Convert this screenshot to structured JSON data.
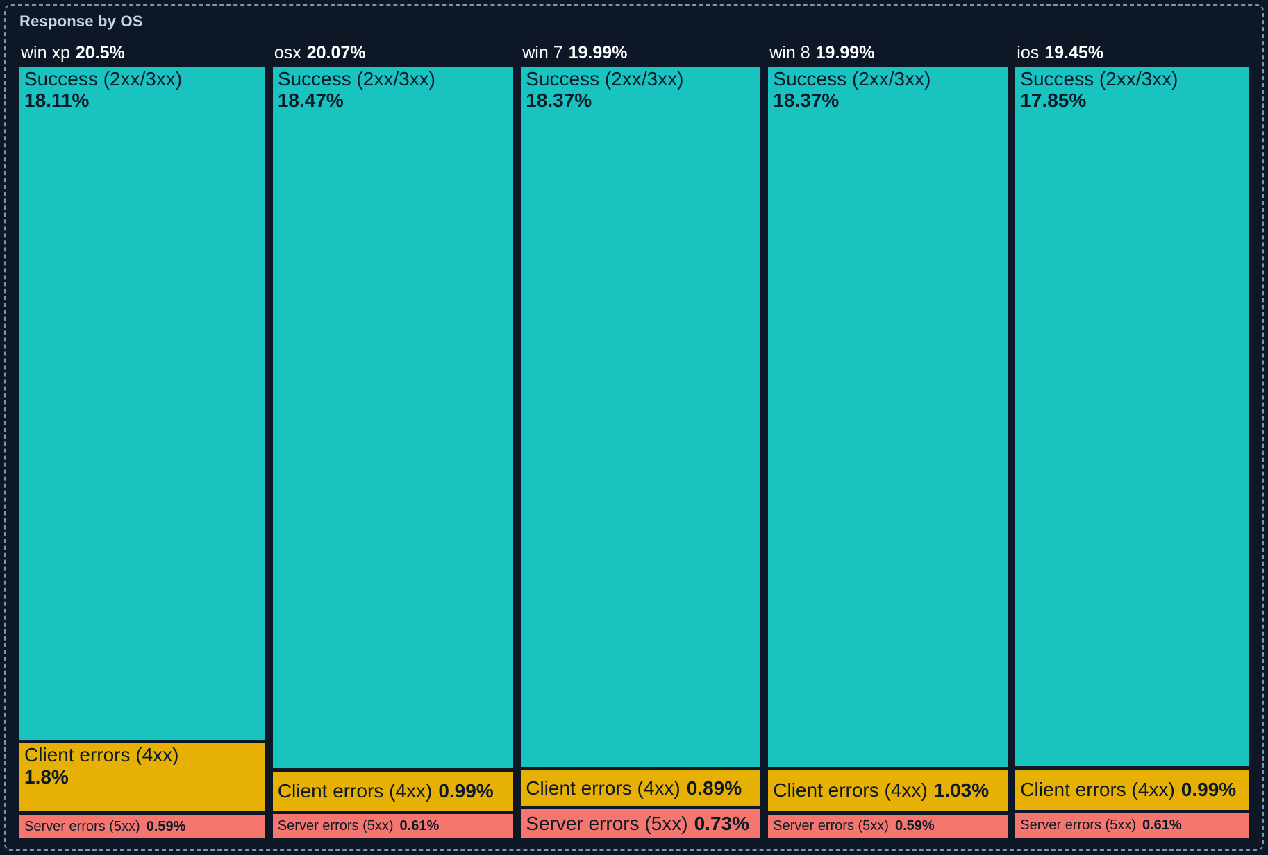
{
  "panel": {
    "title": "Response by OS"
  },
  "colors": {
    "background": "#0d1726",
    "dashed_border": "#8194ab",
    "title_text": "#c9d4e2",
    "header_text": "#ffffff",
    "tile_text": "#0c1a28",
    "success": "#18c3c0",
    "client": "#e7b004",
    "server": "#f4766f"
  },
  "chart_data": {
    "type": "treemap",
    "title": "Response by OS",
    "orientation": "columns proportional to OS share, stacked segments proportional to response share",
    "segment_labels": [
      "Success (2xx/3xx)",
      "Client errors (4xx)",
      "Server errors (5xx)"
    ],
    "groups": [
      {
        "label": "win xp",
        "total_pct": "20.5%",
        "value": 20.5,
        "segments": [
          {
            "kind": "success",
            "label": "Success (2xx/3xx)",
            "pct": "18.11%",
            "value": 18.11
          },
          {
            "kind": "client",
            "label": "Client errors (4xx)",
            "pct": "1.8%",
            "value": 1.8
          },
          {
            "kind": "server",
            "label": "Server errors (5xx)",
            "pct": "0.59%",
            "value": 0.59
          }
        ]
      },
      {
        "label": "osx",
        "total_pct": "20.07%",
        "value": 20.07,
        "segments": [
          {
            "kind": "success",
            "label": "Success (2xx/3xx)",
            "pct": "18.47%",
            "value": 18.47
          },
          {
            "kind": "client",
            "label": "Client errors (4xx)",
            "pct": "0.99%",
            "value": 0.99
          },
          {
            "kind": "server",
            "label": "Server errors (5xx)",
            "pct": "0.61%",
            "value": 0.61
          }
        ]
      },
      {
        "label": "win 7",
        "total_pct": "19.99%",
        "value": 19.99,
        "segments": [
          {
            "kind": "success",
            "label": "Success (2xx/3xx)",
            "pct": "18.37%",
            "value": 18.37
          },
          {
            "kind": "client",
            "label": "Client errors (4xx)",
            "pct": "0.89%",
            "value": 0.89
          },
          {
            "kind": "server",
            "label": "Server errors (5xx)",
            "pct": "0.73%",
            "value": 0.73
          }
        ]
      },
      {
        "label": "win 8",
        "total_pct": "19.99%",
        "value": 19.99,
        "segments": [
          {
            "kind": "success",
            "label": "Success (2xx/3xx)",
            "pct": "18.37%",
            "value": 18.37
          },
          {
            "kind": "client",
            "label": "Client errors (4xx)",
            "pct": "1.03%",
            "value": 1.03
          },
          {
            "kind": "server",
            "label": "Server errors (5xx)",
            "pct": "0.59%",
            "value": 0.59
          }
        ]
      },
      {
        "label": "ios",
        "total_pct": "19.45%",
        "value": 19.45,
        "segments": [
          {
            "kind": "success",
            "label": "Success (2xx/3xx)",
            "pct": "17.85%",
            "value": 17.85
          },
          {
            "kind": "client",
            "label": "Client errors (4xx)",
            "pct": "0.99%",
            "value": 0.99
          },
          {
            "kind": "server",
            "label": "Server errors (5xx)",
            "pct": "0.61%",
            "value": 0.61
          }
        ]
      }
    ]
  }
}
